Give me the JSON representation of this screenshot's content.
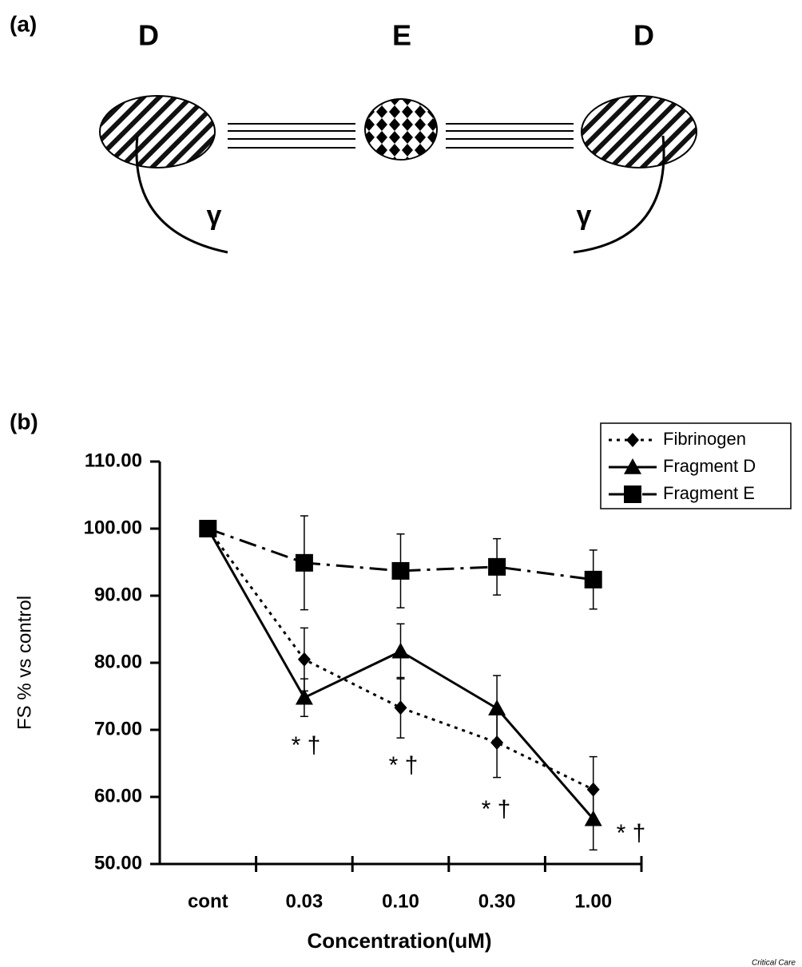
{
  "diagram": {
    "panel_label": "(a)",
    "labels": [
      "D",
      "E",
      "D"
    ],
    "gamma": [
      "γ",
      "γ"
    ]
  },
  "source": "Critical Care",
  "chart_data": {
    "type": "line",
    "panel_label": "(b)",
    "x_label": "Concentration(uM)",
    "y_label": "FS % vs control",
    "categories": [
      "cont",
      "0.03",
      "0.10",
      "0.30",
      "1.00"
    ],
    "ylim": [
      50,
      110
    ],
    "yticks": [
      {
        "value": 50,
        "label": "50.00"
      },
      {
        "value": 60,
        "label": "60.00"
      },
      {
        "value": 70,
        "label": "70.00"
      },
      {
        "value": 80,
        "label": "80.00"
      },
      {
        "value": 90,
        "label": "90.00"
      },
      {
        "value": 100,
        "label": "100.00"
      },
      {
        "value": 110,
        "label": "110.00"
      }
    ],
    "legend": "upper right",
    "series": [
      {
        "name": "Fibrinogen",
        "color": "#000000",
        "marker": "diamond",
        "line_style": "dotted",
        "values": [
          100,
          80.5,
          73.3,
          68.1,
          61.1
        ],
        "errors": [
          null,
          4.7,
          4.5,
          5.2,
          4.9
        ]
      },
      {
        "name": "Fragment D",
        "color": "#000000",
        "marker": "triangle",
        "line_style": "solid",
        "values": [
          100,
          74.8,
          81.7,
          73.2,
          56.7
        ],
        "errors": [
          null,
          2.8,
          4.1,
          4.9,
          4.6
        ]
      },
      {
        "name": "Fragment E",
        "color": "#000000",
        "marker": "square",
        "line_style": "dashdot",
        "values": [
          100,
          94.9,
          93.7,
          94.3,
          92.4
        ],
        "errors": [
          null,
          7.0,
          5.5,
          4.2,
          4.4
        ]
      }
    ],
    "annotations": [
      "* †",
      "* †",
      "* †",
      "* †"
    ]
  }
}
